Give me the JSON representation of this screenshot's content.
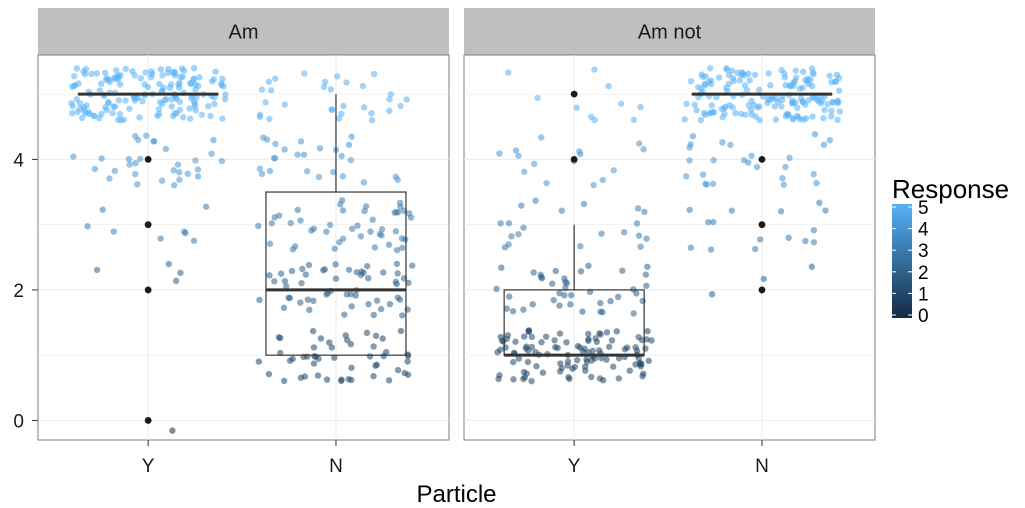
{
  "chart_data": {
    "type": "boxplot",
    "facet_labels": [
      "Am",
      "Am not"
    ],
    "categories": [
      "Y",
      "N"
    ],
    "xlabel": "Particle",
    "ylabel": "",
    "ylim": [
      -0.3,
      5.6
    ],
    "yticks": [
      0,
      2,
      4
    ],
    "grid": true,
    "legend": {
      "title": "Response",
      "labels": [
        "5",
        "4",
        "3",
        "2",
        "1",
        "0"
      ],
      "placement": "right",
      "color_low": "#132B43",
      "color_high": "#56B1F7"
    },
    "boxes": [
      {
        "facet": "Am",
        "category": "Y",
        "q1": 5,
        "median": 5,
        "q3": 5,
        "whisker_low": 5,
        "whisker_high": 5,
        "outliers": [
          4,
          3,
          2,
          0
        ]
      },
      {
        "facet": "Am",
        "category": "N",
        "q1": 1,
        "median": 2,
        "q3": 3.5,
        "whisker_low": 1,
        "whisker_high": 5,
        "outliers": []
      },
      {
        "facet": "Am not",
        "category": "Y",
        "q1": 1,
        "median": 1,
        "q3": 2,
        "whisker_low": 1,
        "whisker_high": 3,
        "outliers": [
          4,
          5
        ]
      },
      {
        "facet": "Am not",
        "category": "N",
        "q1": 5,
        "median": 5,
        "q3": 5,
        "whisker_low": 5,
        "whisker_high": 5,
        "outliers": [
          4,
          3,
          2
        ]
      }
    ],
    "response_counts": [
      {
        "facet": "Am",
        "category": "Y",
        "counts": {
          "0": 1,
          "2": 4,
          "3": 8,
          "4": 30,
          "5": 160
        }
      },
      {
        "facet": "Am",
        "category": "N",
        "counts": {
          "1": 50,
          "2": 55,
          "3": 45,
          "4": 25,
          "5": 30
        }
      },
      {
        "facet": "Am not",
        "category": "Y",
        "counts": {
          "1": 110,
          "2": 40,
          "3": 20,
          "4": 15,
          "5": 10
        }
      },
      {
        "facet": "Am not",
        "category": "N",
        "counts": {
          "2": 3,
          "3": 15,
          "4": 25,
          "5": 160
        }
      }
    ]
  }
}
